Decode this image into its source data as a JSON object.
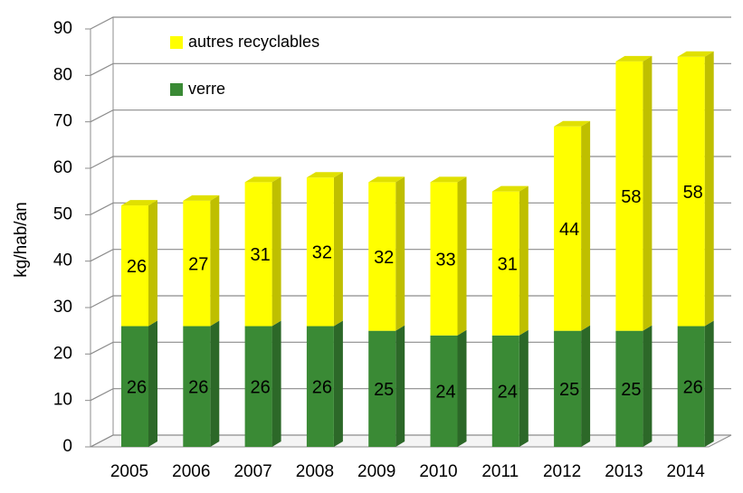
{
  "chart_data": {
    "type": "bar",
    "stacked": true,
    "y_label": "kg/hab/an",
    "categories": [
      "2005",
      "2006",
      "2007",
      "2008",
      "2009",
      "2010",
      "2011",
      "2012",
      "2013",
      "2014"
    ],
    "series": [
      {
        "name": "verre",
        "color": "#3a8a35",
        "values": [
          26,
          26,
          26,
          26,
          25,
          24,
          24,
          25,
          25,
          26
        ]
      },
      {
        "name": "autres recyclables",
        "color": "#ffff00",
        "values": [
          26,
          27,
          31,
          32,
          32,
          33,
          31,
          44,
          58,
          58
        ]
      }
    ],
    "ylim": [
      0,
      90
    ],
    "yticks": [
      0,
      10,
      20,
      30,
      40,
      50,
      60,
      70,
      80,
      90
    ],
    "grid": true,
    "legend": "top-left"
  }
}
